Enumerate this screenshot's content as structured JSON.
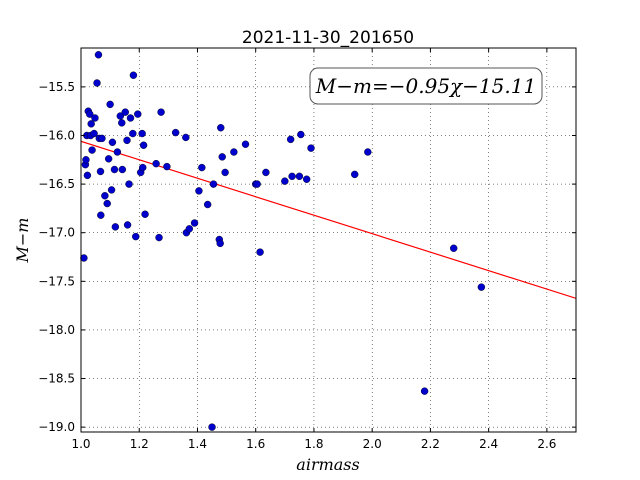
{
  "chart_data": {
    "type": "scatter",
    "title": "2021-11-30_201650",
    "xlabel": "airmass",
    "ylabel": "M−m",
    "xlim": [
      1.0,
      2.7
    ],
    "ylim": [
      -19.05,
      -15.1
    ],
    "xticks": [
      1.0,
      1.2,
      1.4,
      1.6,
      1.8,
      2.0,
      2.2,
      2.4,
      2.6
    ],
    "xtick_labels": [
      "1.0",
      "1.2",
      "1.4",
      "1.6",
      "1.8",
      "2.0",
      "2.2",
      "2.4",
      "2.6"
    ],
    "yticks": [
      -15.5,
      -16.0,
      -16.5,
      -17.0,
      -17.5,
      -18.0,
      -18.5,
      -19.0
    ],
    "ytick_labels": [
      "−15.5",
      "−16.0",
      "−16.5",
      "−17.0",
      "−17.5",
      "−18.0",
      "−18.5",
      "−19.0"
    ],
    "grid": true,
    "annotation": "M−m=−0.95χ−15.11",
    "fit_line": {
      "slope": -0.95,
      "intercept": -15.11,
      "color": "#ff0000"
    },
    "marker_color": "#0000cc",
    "points": [
      [
        1.01,
        -17.26
      ],
      [
        1.015,
        -16.3
      ],
      [
        1.017,
        -16.25
      ],
      [
        1.02,
        -16.0
      ],
      [
        1.022,
        -16.41
      ],
      [
        1.025,
        -15.75
      ],
      [
        1.03,
        -15.78
      ],
      [
        1.033,
        -16.0
      ],
      [
        1.035,
        -15.88
      ],
      [
        1.038,
        -16.15
      ],
      [
        1.045,
        -15.98
      ],
      [
        1.048,
        -15.82
      ],
      [
        1.055,
        -15.46
      ],
      [
        1.06,
        -15.17
      ],
      [
        1.063,
        -16.03
      ],
      [
        1.067,
        -16.37
      ],
      [
        1.068,
        -16.82
      ],
      [
        1.072,
        -16.03
      ],
      [
        1.082,
        -16.62
      ],
      [
        1.09,
        -16.7
      ],
      [
        1.095,
        -16.24
      ],
      [
        1.1,
        -15.68
      ],
      [
        1.105,
        -16.56
      ],
      [
        1.108,
        -16.07
      ],
      [
        1.115,
        -16.35
      ],
      [
        1.118,
        -16.94
      ],
      [
        1.125,
        -16.17
      ],
      [
        1.135,
        -15.8
      ],
      [
        1.14,
        -15.87
      ],
      [
        1.142,
        -16.35
      ],
      [
        1.152,
        -15.76
      ],
      [
        1.158,
        -16.05
      ],
      [
        1.16,
        -16.92
      ],
      [
        1.165,
        -16.5
      ],
      [
        1.17,
        -15.82
      ],
      [
        1.178,
        -15.98
      ],
      [
        1.18,
        -15.38
      ],
      [
        1.188,
        -17.04
      ],
      [
        1.195,
        -15.78
      ],
      [
        1.205,
        -16.38
      ],
      [
        1.21,
        -15.98
      ],
      [
        1.215,
        -16.1
      ],
      [
        1.22,
        -16.81
      ],
      [
        1.212,
        -16.33
      ],
      [
        1.258,
        -16.29
      ],
      [
        1.268,
        -17.05
      ],
      [
        1.275,
        -15.76
      ],
      [
        1.295,
        -16.32
      ],
      [
        1.325,
        -15.97
      ],
      [
        1.36,
        -16.02
      ],
      [
        1.362,
        -17.0
      ],
      [
        1.372,
        -16.96
      ],
      [
        1.39,
        -16.9
      ],
      [
        1.405,
        -16.57
      ],
      [
        1.415,
        -16.33
      ],
      [
        1.435,
        -16.71
      ],
      [
        1.45,
        -19.0
      ],
      [
        1.455,
        -16.5
      ],
      [
        1.475,
        -17.07
      ],
      [
        1.478,
        -17.11
      ],
      [
        1.48,
        -15.92
      ],
      [
        1.485,
        -16.22
      ],
      [
        1.495,
        -16.38
      ],
      [
        1.525,
        -16.17
      ],
      [
        1.565,
        -16.09
      ],
      [
        1.6,
        -16.5
      ],
      [
        1.605,
        -16.5
      ],
      [
        1.615,
        -17.2
      ],
      [
        1.635,
        -16.38
      ],
      [
        1.7,
        -16.47
      ],
      [
        1.72,
        -16.04
      ],
      [
        1.725,
        -16.42
      ],
      [
        1.75,
        -16.42
      ],
      [
        1.755,
        -15.99
      ],
      [
        1.775,
        -16.45
      ],
      [
        1.79,
        -16.13
      ],
      [
        1.94,
        -16.4
      ],
      [
        1.985,
        -16.17
      ],
      [
        2.18,
        -18.63
      ],
      [
        2.28,
        -17.16
      ],
      [
        2.375,
        -17.56
      ]
    ]
  }
}
